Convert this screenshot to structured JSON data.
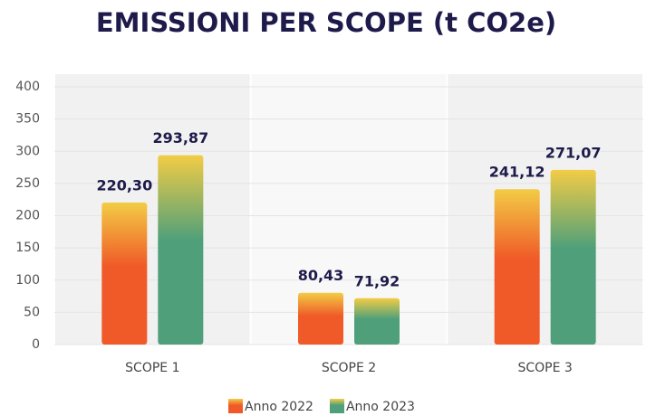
{
  "chart_data": {
    "type": "bar",
    "title": "EMISSIONI PER SCOPE (t CO2e)",
    "categories": [
      "SCOPE 1",
      "SCOPE 2",
      "SCOPE 3"
    ],
    "series": [
      {
        "name": "Anno 2022",
        "color": "#f05a28",
        "values": [
          220.3,
          80.43,
          241.12
        ],
        "value_labels": [
          "220,30",
          "80,43",
          "241,12"
        ]
      },
      {
        "name": "Anno 2023",
        "color": "#4fa07a",
        "values": [
          293.87,
          71.92,
          271.07
        ],
        "value_labels": [
          "293,87",
          "71,92",
          "271,07"
        ]
      }
    ],
    "ylim": [
      0,
      400
    ],
    "yticks": [
      0,
      50,
      100,
      150,
      200,
      250,
      300,
      350,
      400
    ],
    "grid": true,
    "legend": "bottom"
  }
}
